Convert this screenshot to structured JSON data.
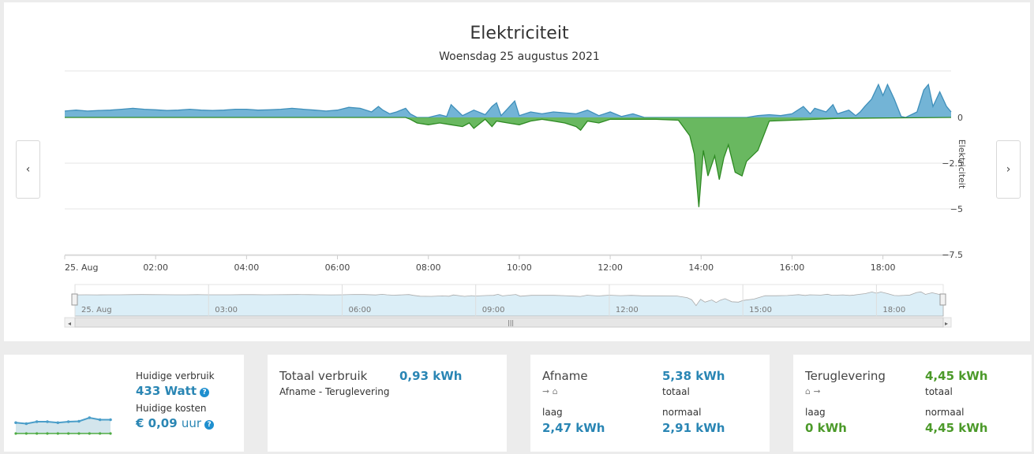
{
  "header": {
    "title": "Elektriciteit",
    "subtitle": "Woensdag 25 augustus 2021"
  },
  "chart_data": {
    "type": "area",
    "ylabel": "Elektriciteit",
    "ylim": [
      -7.5,
      1.5
    ],
    "yticks": [
      "0",
      "−2.5",
      "−5",
      "−7.5"
    ],
    "ytick_values": [
      0,
      -2.5,
      -5,
      -7.5
    ],
    "xlim": [
      0,
      19.5
    ],
    "xtick_labels": [
      "25. Aug",
      "02:00",
      "04:00",
      "06:00",
      "08:00",
      "10:00",
      "12:00",
      "14:00",
      "16:00",
      "18:00"
    ],
    "xtick_values": [
      0,
      2,
      4,
      6,
      8,
      10,
      12,
      14,
      16,
      18
    ],
    "series": [
      {
        "color": "#5ba7cf",
        "x": [
          0,
          0.25,
          0.5,
          0.75,
          1,
          1.25,
          1.5,
          1.75,
          2,
          2.25,
          2.5,
          2.75,
          3,
          3.25,
          3.5,
          3.75,
          4,
          4.25,
          4.5,
          4.75,
          5,
          5.25,
          5.5,
          5.75,
          6,
          6.25,
          6.5,
          6.75,
          6.9,
          7,
          7.15,
          7.3,
          7.5,
          7.6,
          7.75,
          8,
          8.25,
          8.4,
          8.5,
          8.75,
          9,
          9.25,
          9.4,
          9.5,
          9.6,
          9.75,
          9.9,
          10,
          10.25,
          10.5,
          10.75,
          11,
          11.25,
          11.5,
          11.75,
          12,
          12.25,
          12.5,
          12.75,
          13,
          13.5,
          14,
          15,
          15.25,
          15.5,
          15.75,
          16,
          16.25,
          16.4,
          16.5,
          16.75,
          16.9,
          17,
          17.25,
          17.4,
          17.5,
          17.6,
          17.75,
          17.9,
          18,
          18.1,
          18.25,
          18.4,
          18.5,
          18.75,
          18.9,
          19,
          19.1,
          19.25,
          19.4,
          19.5
        ],
        "y": [
          0.35,
          0.4,
          0.35,
          0.38,
          0.4,
          0.45,
          0.5,
          0.45,
          0.42,
          0.38,
          0.4,
          0.45,
          0.4,
          0.38,
          0.4,
          0.45,
          0.45,
          0.4,
          0.42,
          0.45,
          0.5,
          0.45,
          0.4,
          0.35,
          0.4,
          0.55,
          0.5,
          0.3,
          0.6,
          0.4,
          0.2,
          0.3,
          0.5,
          0.2,
          0,
          0,
          0.15,
          0.05,
          0.7,
          0.1,
          0.4,
          0.15,
          0.6,
          0.8,
          0.1,
          0.5,
          0.9,
          0.1,
          0.3,
          0.2,
          0.3,
          0.25,
          0.2,
          0.4,
          0.1,
          0.3,
          0.05,
          0.2,
          0,
          0,
          0,
          0,
          0,
          0.1,
          0.15,
          0.1,
          0.2,
          0.6,
          0.2,
          0.5,
          0.3,
          0.7,
          0.2,
          0.4,
          0.1,
          0.3,
          0.6,
          1.0,
          1.8,
          1.2,
          1.8,
          1.0,
          0.05,
          0,
          0.3,
          1.5,
          1.8,
          0.6,
          1.4,
          0.6,
          0.3
        ]
      },
      {
        "color": "#4fab44",
        "x": [
          0,
          7.5,
          7.6,
          7.75,
          8,
          8.25,
          8.5,
          8.75,
          8.9,
          9,
          9.25,
          9.4,
          9.5,
          9.75,
          10,
          10.25,
          10.5,
          10.75,
          11,
          11.25,
          11.35,
          11.5,
          11.75,
          12,
          12.5,
          13,
          13.5,
          13.75,
          13.85,
          13.95,
          14.05,
          14.15,
          14.3,
          14.4,
          14.5,
          14.6,
          14.75,
          14.9,
          15.0,
          15.25,
          15.5,
          16,
          16.5,
          17,
          19.5
        ],
        "y": [
          0,
          0,
          -0.1,
          -0.3,
          -0.4,
          -0.3,
          -0.4,
          -0.5,
          -0.3,
          -0.6,
          -0.1,
          -0.5,
          -0.2,
          -0.3,
          -0.4,
          -0.2,
          -0.1,
          -0.2,
          -0.3,
          -0.5,
          -0.7,
          -0.2,
          -0.3,
          -0.1,
          -0.1,
          -0.1,
          -0.15,
          -1.0,
          -2.0,
          -4.9,
          -1.8,
          -3.2,
          -2.1,
          -3.4,
          -2.2,
          -1.5,
          -3.0,
          -3.2,
          -2.4,
          -1.8,
          -0.2,
          -0.15,
          -0.1,
          -0.05,
          0
        ]
      }
    ]
  },
  "navigator": {
    "labels": [
      "25. Aug",
      "03:00",
      "06:00",
      "09:00",
      "12:00",
      "15:00",
      "18:00"
    ],
    "values": [
      0,
      3,
      6,
      9,
      12,
      15,
      18
    ]
  },
  "nav": {
    "prev": "‹",
    "next": "›"
  },
  "cards": {
    "current": {
      "usage_label": "Huidige verbruik",
      "usage_value": "433 Watt",
      "cost_label": "Huidige kosten",
      "cost_value": "€ 0,09",
      "cost_unit": "uur",
      "help": "?",
      "spark_blue": [
        0.55,
        0.5,
        0.6,
        0.6,
        0.55,
        0.6,
        0.62,
        0.8,
        0.7,
        0.7
      ],
      "spark_green": [
        0,
        0,
        0,
        0,
        0,
        0,
        0,
        0,
        0,
        0
      ]
    },
    "total": {
      "title": "Totaal verbruik",
      "value": "0,93 kWh",
      "subtitle": "Afname - Teruglevering"
    },
    "afname": {
      "title": "Afname",
      "total_value": "5,38 kWh",
      "total_label": "totaal",
      "low_label": "laag",
      "low_value": "2,47 kWh",
      "normal_label": "normaal",
      "normal_value": "2,91 kWh",
      "icon": "arrow-to-home"
    },
    "teruglevering": {
      "title": "Teruglevering",
      "total_value": "4,45 kWh",
      "total_label": "totaal",
      "low_label": "laag",
      "low_value": "0 kWh",
      "normal_label": "normaal",
      "normal_value": "4,45 kWh",
      "icon": "home-to-arrow"
    }
  }
}
